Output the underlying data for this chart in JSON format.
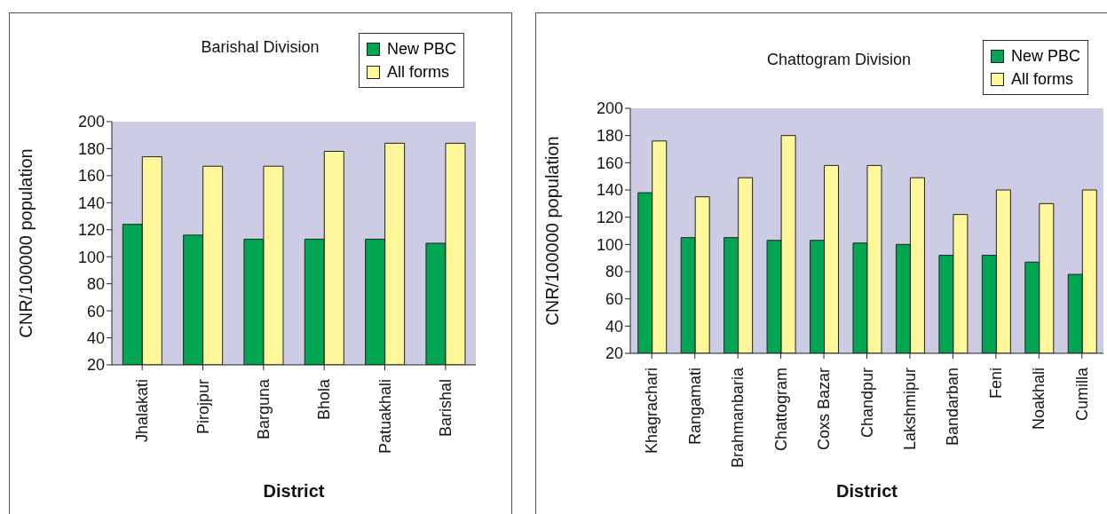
{
  "chart_data": [
    {
      "type": "bar",
      "title": "Barishal Division",
      "xlabel": "District",
      "ylabel": "CNR/100000 population",
      "legend": "top right",
      "ylim": [
        20,
        200
      ],
      "yticks": [
        20,
        40,
        60,
        80,
        100,
        120,
        140,
        160,
        180,
        200
      ],
      "categories": [
        "Jhalakati",
        "Pirojpur",
        "Barguna",
        "Bhola",
        "Patuakhali",
        "Barishal"
      ],
      "series": [
        {
          "name": "New PBC",
          "color": "#00a651",
          "values": [
            124,
            116,
            113,
            113,
            113,
            110
          ]
        },
        {
          "name": "All forms",
          "color": "#fff799",
          "values": [
            174,
            167,
            167,
            178,
            184,
            184
          ]
        }
      ]
    },
    {
      "type": "bar",
      "title": "Chattogram Division",
      "xlabel": "District",
      "ylabel": "CNR/100000 population",
      "legend": "top right",
      "ylim": [
        20,
        200
      ],
      "yticks": [
        20,
        40,
        60,
        80,
        100,
        120,
        140,
        160,
        180,
        200
      ],
      "categories": [
        "Khagrachari",
        "Rangamati",
        "Brahmanbaria",
        "Chattogram",
        "Coxs Bazar",
        "Chandpur",
        "Lakshmipur",
        "Bandarban",
        "Feni",
        "Noakhali",
        "Cumilla"
      ],
      "series": [
        {
          "name": "New PBC",
          "color": "#00a651",
          "values": [
            138,
            105,
            105,
            103,
            103,
            101,
            100,
            92,
            92,
            87,
            78
          ]
        },
        {
          "name": "All forms",
          "color": "#fff799",
          "values": [
            176,
            135,
            149,
            180,
            158,
            158,
            149,
            122,
            140,
            130,
            140
          ]
        }
      ]
    }
  ]
}
